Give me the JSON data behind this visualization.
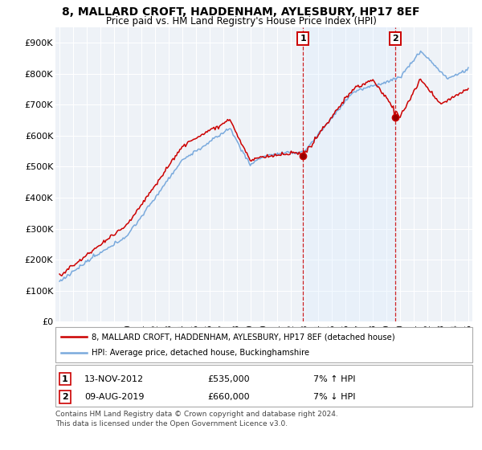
{
  "title": "8, MALLARD CROFT, HADDENHAM, AYLESBURY, HP17 8EF",
  "subtitle": "Price paid vs. HM Land Registry's House Price Index (HPI)",
  "legend_label_red": "8, MALLARD CROFT, HADDENHAM, AYLESBURY, HP17 8EF (detached house)",
  "legend_label_blue": "HPI: Average price, detached house, Buckinghamshire",
  "annotation1_date": "13-NOV-2012",
  "annotation1_price": "£535,000",
  "annotation1_hpi": "7% ↑ HPI",
  "annotation1_year": 2012.87,
  "annotation1_value": 535000,
  "annotation2_date": "09-AUG-2019",
  "annotation2_price": "£660,000",
  "annotation2_hpi": "7% ↓ HPI",
  "annotation2_year": 2019.62,
  "annotation2_value": 660000,
  "footer": "Contains HM Land Registry data © Crown copyright and database right 2024.\nThis data is licensed under the Open Government Licence v3.0.",
  "ylim": [
    0,
    950000
  ],
  "yticks": [
    0,
    100000,
    200000,
    300000,
    400000,
    500000,
    600000,
    700000,
    800000,
    900000
  ],
  "xlim_start": 1994.7,
  "xlim_end": 2025.3,
  "red_color": "#cc0000",
  "blue_color": "#7aaadd",
  "shade_color": "#ddeeff",
  "background_chart": "#eef2f7",
  "background_fig": "#ffffff",
  "grid_color": "#ffffff"
}
